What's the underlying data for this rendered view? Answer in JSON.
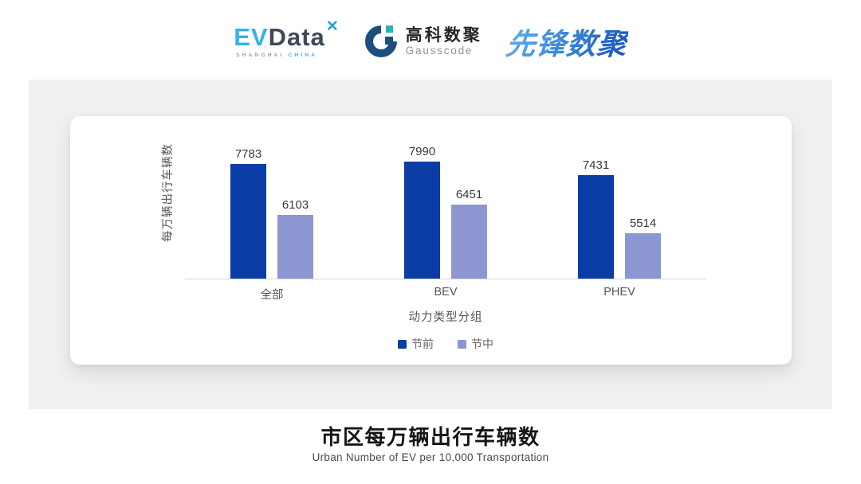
{
  "header": {
    "evdata": {
      "ev": "EV",
      "data": "Data",
      "mark": "✕",
      "shanghai": "SHANGHAI",
      "china": "CHINA"
    },
    "gausscode": {
      "name_cn": "高科数聚",
      "name_en": "Gausscode"
    },
    "pioneer": {
      "name": "先锋数聚"
    }
  },
  "chart_data": {
    "type": "bar",
    "categories": [
      "全部",
      "BEV",
      "PHEV"
    ],
    "series": [
      {
        "name": "节前",
        "color": "#0B3DA6",
        "values": [
          7783,
          7990,
          7431
        ]
      },
      {
        "name": "节中",
        "color": "#8C97D2",
        "values": [
          6103,
          6451,
          5514
        ]
      }
    ],
    "xlabel": "动力类型分组",
    "ylabel": "每万辆出行车辆数",
    "ylim": [
      4000,
      8400
    ],
    "grid": false,
    "legend_position": "bottom",
    "value_labels": true,
    "axis_line_color": "#D9D9D9"
  },
  "footer": {
    "title": "市区每万辆出行车辆数",
    "subtitle": "Urban Number of EV per 10,000 Transportation"
  },
  "colors": {
    "panel_bg": "#F0F0F1",
    "card_bg": "#FFFFFF",
    "evdata_blue": "#35B2E5",
    "evdata_dark": "#3D4A57",
    "gauss_navy": "#1C4E7E",
    "gauss_teal": "#25B5B0",
    "pioneer_blue": "#2B7BD4"
  }
}
